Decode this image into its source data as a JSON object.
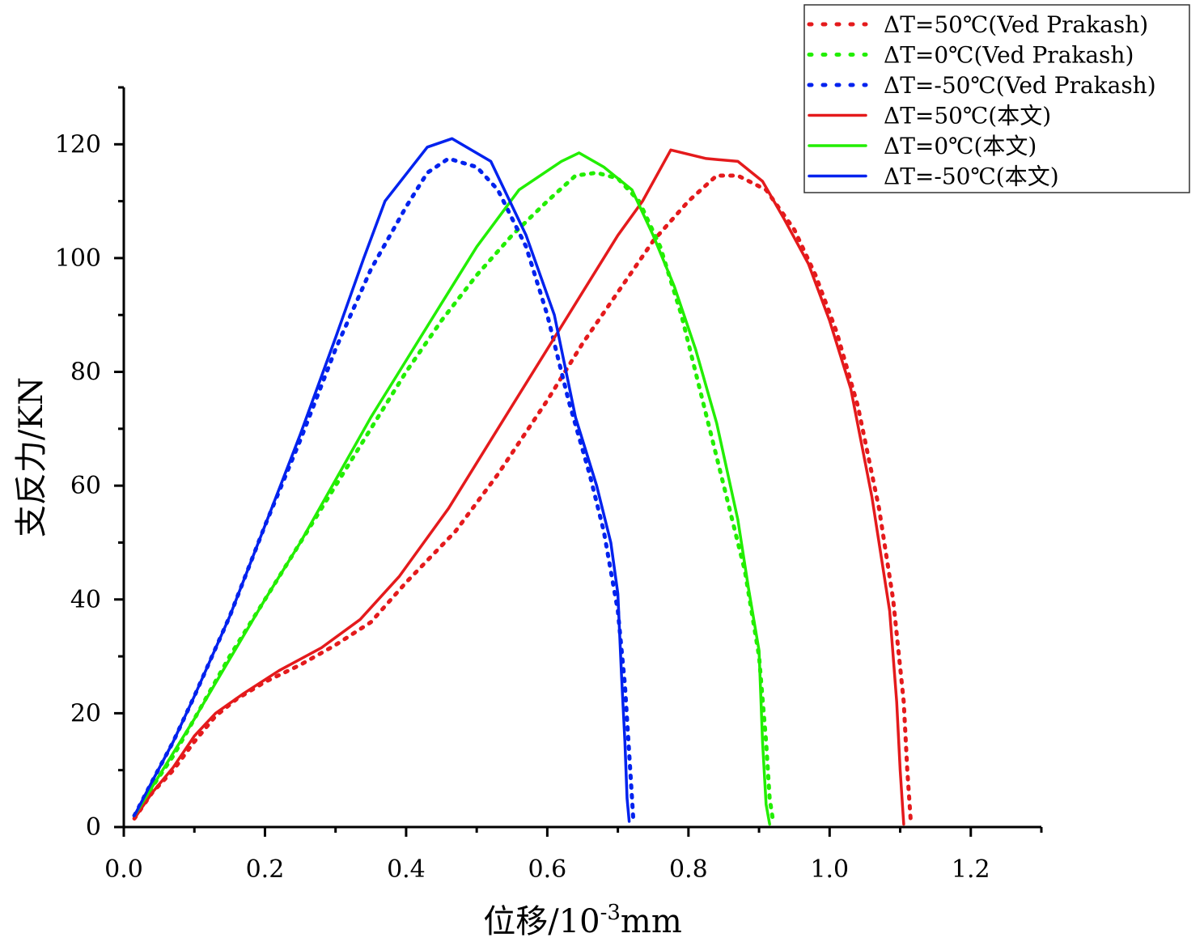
{
  "chart_data": {
    "type": "line",
    "xlabel": "位移/10",
    "xlabel_sup": "-3",
    "xlabel_unit": "mm",
    "ylabel": "支反力/KN",
    "xlim": [
      0,
      1.3
    ],
    "ylim": [
      0,
      130
    ],
    "xticks": [
      "0.0",
      "0.2",
      "0.4",
      "0.6",
      "0.8",
      "1.0",
      "1.2"
    ],
    "yticks": [
      "0",
      "20",
      "40",
      "60",
      "80",
      "100",
      "120"
    ],
    "grid": false,
    "legend_position": "top-right",
    "series": [
      {
        "name": "ΔT=50℃(Ved Prakash)",
        "color": "#e41a1c",
        "style": "dotted",
        "points": [
          [
            0.015,
            1.5
          ],
          [
            0.04,
            6
          ],
          [
            0.07,
            10
          ],
          [
            0.1,
            15
          ],
          [
            0.13,
            19.5
          ],
          [
            0.16,
            22.5
          ],
          [
            0.2,
            25.5
          ],
          [
            0.25,
            28.5
          ],
          [
            0.3,
            32
          ],
          [
            0.35,
            36
          ],
          [
            0.4,
            43
          ],
          [
            0.47,
            52
          ],
          [
            0.53,
            62
          ],
          [
            0.6,
            75
          ],
          [
            0.65,
            85
          ],
          [
            0.7,
            94
          ],
          [
            0.75,
            103
          ],
          [
            0.8,
            110
          ],
          [
            0.84,
            114.5
          ],
          [
            0.87,
            114.5
          ],
          [
            0.91,
            112
          ],
          [
            0.95,
            105
          ],
          [
            0.98,
            97
          ],
          [
            1.01,
            87
          ],
          [
            1.04,
            74
          ],
          [
            1.07,
            56
          ],
          [
            1.09,
            40
          ],
          [
            1.105,
            22
          ],
          [
            1.11,
            10
          ],
          [
            1.115,
            1
          ]
        ]
      },
      {
        "name": "ΔT=0℃(Ved Prakash)",
        "color": "#22ee00",
        "style": "dotted",
        "points": [
          [
            0.015,
            2
          ],
          [
            0.04,
            7
          ],
          [
            0.07,
            12.5
          ],
          [
            0.1,
            19
          ],
          [
            0.15,
            30
          ],
          [
            0.2,
            40
          ],
          [
            0.25,
            50
          ],
          [
            0.3,
            60
          ],
          [
            0.35,
            70
          ],
          [
            0.4,
            80
          ],
          [
            0.45,
            89
          ],
          [
            0.5,
            97
          ],
          [
            0.55,
            104
          ],
          [
            0.6,
            110
          ],
          [
            0.64,
            114.5
          ],
          [
            0.67,
            115
          ],
          [
            0.7,
            114
          ],
          [
            0.73,
            110
          ],
          [
            0.76,
            102
          ],
          [
            0.79,
            90
          ],
          [
            0.82,
            75
          ],
          [
            0.85,
            60
          ],
          [
            0.88,
            45
          ],
          [
            0.9,
            30
          ],
          [
            0.91,
            15
          ],
          [
            0.915,
            5
          ],
          [
            0.92,
            1
          ]
        ]
      },
      {
        "name": "ΔT=-50℃(Ved Prakash)",
        "color": "#0022ee",
        "style": "dotted",
        "points": [
          [
            0.015,
            2
          ],
          [
            0.04,
            8
          ],
          [
            0.07,
            15
          ],
          [
            0.1,
            23
          ],
          [
            0.15,
            37
          ],
          [
            0.2,
            53
          ],
          [
            0.25,
            68
          ],
          [
            0.3,
            84
          ],
          [
            0.35,
            98
          ],
          [
            0.4,
            109
          ],
          [
            0.43,
            115
          ],
          [
            0.46,
            117.5
          ],
          [
            0.5,
            116
          ],
          [
            0.53,
            112
          ],
          [
            0.57,
            102
          ],
          [
            0.6,
            90
          ],
          [
            0.63,
            75
          ],
          [
            0.66,
            62
          ],
          [
            0.68,
            52
          ],
          [
            0.7,
            38
          ],
          [
            0.71,
            25
          ],
          [
            0.715,
            15
          ],
          [
            0.72,
            5
          ],
          [
            0.722,
            1
          ]
        ]
      },
      {
        "name": "ΔT=50℃(本文)",
        "color": "#e41a1c",
        "style": "solid",
        "points": [
          [
            0.015,
            1.5
          ],
          [
            0.04,
            6
          ],
          [
            0.07,
            10.5
          ],
          [
            0.1,
            16
          ],
          [
            0.13,
            20
          ],
          [
            0.17,
            23.5
          ],
          [
            0.22,
            27.5
          ],
          [
            0.28,
            31.5
          ],
          [
            0.335,
            36.5
          ],
          [
            0.39,
            44
          ],
          [
            0.46,
            56
          ],
          [
            0.53,
            70
          ],
          [
            0.6,
            84
          ],
          [
            0.65,
            94
          ],
          [
            0.7,
            104
          ],
          [
            0.735,
            110
          ],
          [
            0.775,
            119
          ],
          [
            0.825,
            117.5
          ],
          [
            0.87,
            117
          ],
          [
            0.905,
            113.5
          ],
          [
            0.935,
            107
          ],
          [
            0.97,
            99
          ],
          [
            1.0,
            89
          ],
          [
            1.03,
            77
          ],
          [
            1.06,
            58
          ],
          [
            1.085,
            38
          ],
          [
            1.095,
            22
          ],
          [
            1.1,
            10
          ],
          [
            1.105,
            0.5
          ]
        ]
      },
      {
        "name": "ΔT=0℃(本文)",
        "color": "#22ee00",
        "style": "solid",
        "points": [
          [
            0.015,
            2
          ],
          [
            0.05,
            9
          ],
          [
            0.1,
            19
          ],
          [
            0.15,
            29.5
          ],
          [
            0.2,
            40
          ],
          [
            0.25,
            50
          ],
          [
            0.3,
            61
          ],
          [
            0.35,
            72
          ],
          [
            0.4,
            82
          ],
          [
            0.45,
            92
          ],
          [
            0.5,
            102
          ],
          [
            0.56,
            112
          ],
          [
            0.62,
            117
          ],
          [
            0.645,
            118.5
          ],
          [
            0.68,
            116
          ],
          [
            0.72,
            112
          ],
          [
            0.75,
            104
          ],
          [
            0.78,
            95
          ],
          [
            0.81,
            84
          ],
          [
            0.84,
            71
          ],
          [
            0.87,
            54
          ],
          [
            0.885,
            42
          ],
          [
            0.9,
            31
          ],
          [
            0.905,
            15
          ],
          [
            0.91,
            4
          ],
          [
            0.915,
            0.5
          ]
        ]
      },
      {
        "name": "ΔT=-50℃(本文)",
        "color": "#0022ee",
        "style": "solid",
        "points": [
          [
            0.015,
            2
          ],
          [
            0.04,
            8
          ],
          [
            0.07,
            15
          ],
          [
            0.1,
            23
          ],
          [
            0.15,
            37
          ],
          [
            0.2,
            53
          ],
          [
            0.25,
            69
          ],
          [
            0.3,
            86
          ],
          [
            0.34,
            100
          ],
          [
            0.37,
            110
          ],
          [
            0.43,
            119.5
          ],
          [
            0.465,
            121
          ],
          [
            0.52,
            117
          ],
          [
            0.57,
            104
          ],
          [
            0.61,
            90
          ],
          [
            0.64,
            72
          ],
          [
            0.67,
            60
          ],
          [
            0.69,
            50
          ],
          [
            0.7,
            41
          ],
          [
            0.705,
            27
          ],
          [
            0.71,
            15
          ],
          [
            0.713,
            5
          ],
          [
            0.716,
            1
          ]
        ]
      }
    ]
  }
}
